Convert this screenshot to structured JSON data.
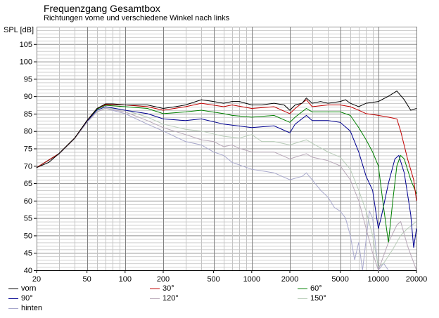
{
  "chart_data": {
    "type": "line",
    "title": "Frequenzgang Gesamtbox",
    "subtitle": "Richtungen vorne und verschiedene Winkel nach links",
    "ylabel": "SPL [dB]",
    "xlabel": "",
    "xscale": "log",
    "xlim": [
      20,
      20000
    ],
    "ylim": [
      40,
      110
    ],
    "xticks": [
      20,
      50,
      100,
      200,
      500,
      1000,
      2000,
      5000,
      10000,
      20000
    ],
    "xtick_labels": [
      "20",
      "50",
      "100",
      "200",
      "500",
      "1000",
      "2000",
      "5000",
      "10000",
      "20000"
    ],
    "yticks": [
      40,
      45,
      50,
      55,
      60,
      65,
      70,
      75,
      80,
      85,
      90,
      95,
      100,
      105
    ],
    "ytick_labels": [
      "40",
      "45",
      "50",
      "55",
      "60",
      "65",
      "70",
      "75",
      "80",
      "85",
      "90",
      "95",
      "100",
      "105"
    ],
    "grid": true,
    "legend_position": "bottom",
    "series": [
      {
        "name": "vorn",
        "color": "#000000",
        "points": [
          [
            20,
            69.5
          ],
          [
            25,
            71
          ],
          [
            30,
            73.5
          ],
          [
            40,
            78
          ],
          [
            50,
            83
          ],
          [
            60,
            86.5
          ],
          [
            70,
            87.8
          ],
          [
            80,
            87.8
          ],
          [
            100,
            87.5
          ],
          [
            150,
            87.5
          ],
          [
            200,
            86.5
          ],
          [
            250,
            87
          ],
          [
            300,
            87.5
          ],
          [
            400,
            89
          ],
          [
            500,
            88.5
          ],
          [
            600,
            88
          ],
          [
            700,
            88.5
          ],
          [
            800,
            88.5
          ],
          [
            1000,
            87.5
          ],
          [
            1200,
            87.5
          ],
          [
            1500,
            88
          ],
          [
            1800,
            87.5
          ],
          [
            2000,
            86
          ],
          [
            2200,
            87.5
          ],
          [
            2500,
            88
          ],
          [
            2700,
            89.5
          ],
          [
            3000,
            88
          ],
          [
            3500,
            88.5
          ],
          [
            4000,
            88
          ],
          [
            5000,
            88.5
          ],
          [
            5500,
            89
          ],
          [
            6000,
            88
          ],
          [
            7000,
            87
          ],
          [
            8000,
            88
          ],
          [
            10000,
            88.5
          ],
          [
            12000,
            90
          ],
          [
            14000,
            91.5
          ],
          [
            16000,
            89
          ],
          [
            18000,
            86
          ],
          [
            20000,
            86.5
          ]
        ]
      },
      {
        "name": "30°",
        "color": "#c00000",
        "points": [
          [
            20,
            69.5
          ],
          [
            30,
            73.5
          ],
          [
            40,
            78
          ],
          [
            50,
            83
          ],
          [
            60,
            86.5
          ],
          [
            70,
            87.6
          ],
          [
            100,
            87.5
          ],
          [
            150,
            87
          ],
          [
            200,
            86
          ],
          [
            300,
            87
          ],
          [
            400,
            88
          ],
          [
            600,
            87
          ],
          [
            700,
            87.5
          ],
          [
            1000,
            86.5
          ],
          [
            1500,
            87
          ],
          [
            2000,
            85
          ],
          [
            2200,
            86.5
          ],
          [
            2700,
            89
          ],
          [
            3000,
            87
          ],
          [
            4000,
            87.5
          ],
          [
            5000,
            87.5
          ],
          [
            6000,
            87
          ],
          [
            7000,
            86
          ],
          [
            8000,
            85
          ],
          [
            10000,
            84.5
          ],
          [
            12000,
            84
          ],
          [
            14000,
            83.5
          ],
          [
            15000,
            80
          ],
          [
            17000,
            72
          ],
          [
            19000,
            66
          ],
          [
            20000,
            60
          ]
        ]
      },
      {
        "name": "60°",
        "color": "#008000",
        "points": [
          [
            20,
            69.5
          ],
          [
            30,
            73.5
          ],
          [
            40,
            78
          ],
          [
            50,
            83
          ],
          [
            60,
            86.3
          ],
          [
            70,
            87.4
          ],
          [
            100,
            87
          ],
          [
            150,
            86.5
          ],
          [
            200,
            85
          ],
          [
            300,
            85.5
          ],
          [
            400,
            86
          ],
          [
            600,
            85
          ],
          [
            700,
            84.5
          ],
          [
            1000,
            84
          ],
          [
            1500,
            84.5
          ],
          [
            2000,
            82.5
          ],
          [
            2200,
            84
          ],
          [
            2700,
            86.5
          ],
          [
            3000,
            85.5
          ],
          [
            4000,
            85.5
          ],
          [
            5000,
            85.5
          ],
          [
            6000,
            84.5
          ],
          [
            7000,
            81
          ],
          [
            8000,
            77.5
          ],
          [
            9000,
            74
          ],
          [
            10000,
            70
          ],
          [
            11000,
            58
          ],
          [
            12000,
            48
          ],
          [
            13000,
            60
          ],
          [
            14000,
            70
          ],
          [
            15000,
            73
          ],
          [
            16000,
            72
          ],
          [
            18000,
            66
          ],
          [
            20000,
            62
          ]
        ]
      },
      {
        "name": "90°",
        "color": "#000090",
        "points": [
          [
            20,
            69.5
          ],
          [
            30,
            73.5
          ],
          [
            40,
            78
          ],
          [
            50,
            82.8
          ],
          [
            60,
            86
          ],
          [
            70,
            87
          ],
          [
            100,
            86
          ],
          [
            150,
            85
          ],
          [
            200,
            83.5
          ],
          [
            300,
            83
          ],
          [
            400,
            83.5
          ],
          [
            600,
            82
          ],
          [
            1000,
            81
          ],
          [
            1500,
            81.5
          ],
          [
            2000,
            79.5
          ],
          [
            2200,
            82
          ],
          [
            2700,
            84.5
          ],
          [
            3000,
            83
          ],
          [
            4000,
            83
          ],
          [
            5000,
            82.5
          ],
          [
            6000,
            80
          ],
          [
            7000,
            74
          ],
          [
            8000,
            67
          ],
          [
            9000,
            63
          ],
          [
            10000,
            52
          ],
          [
            10500,
            55
          ],
          [
            12000,
            65
          ],
          [
            13500,
            72
          ],
          [
            14500,
            73
          ],
          [
            16000,
            68
          ],
          [
            18000,
            56
          ],
          [
            19000,
            46.5
          ],
          [
            20000,
            52
          ]
        ]
      },
      {
        "name": "120°",
        "color": "#b8a8b8",
        "points": [
          [
            20,
            69.5
          ],
          [
            30,
            73.3
          ],
          [
            40,
            77.8
          ],
          [
            50,
            82.5
          ],
          [
            60,
            85.5
          ],
          [
            70,
            86.5
          ],
          [
            100,
            85.5
          ],
          [
            150,
            83
          ],
          [
            200,
            81
          ],
          [
            300,
            79
          ],
          [
            400,
            77.5
          ],
          [
            500,
            77
          ],
          [
            600,
            75.5
          ],
          [
            700,
            76
          ],
          [
            800,
            75
          ],
          [
            1000,
            74
          ],
          [
            1500,
            74
          ],
          [
            2000,
            72
          ],
          [
            2700,
            73.5
          ],
          [
            3000,
            72.5
          ],
          [
            4000,
            71.5
          ],
          [
            5000,
            70
          ],
          [
            6000,
            66
          ],
          [
            7000,
            60
          ],
          [
            8000,
            52
          ],
          [
            9000,
            45
          ],
          [
            10000,
            40
          ],
          [
            12000,
            48
          ],
          [
            14000,
            53
          ],
          [
            15000,
            54
          ],
          [
            17000,
            47
          ],
          [
            20000,
            40
          ]
        ]
      },
      {
        "name": "150°",
        "color": "#b8ccb8",
        "points": [
          [
            20,
            69.5
          ],
          [
            30,
            73.3
          ],
          [
            40,
            77.8
          ],
          [
            50,
            82.5
          ],
          [
            60,
            85.5
          ],
          [
            70,
            86.7
          ],
          [
            100,
            86
          ],
          [
            150,
            84
          ],
          [
            200,
            82
          ],
          [
            300,
            80.5
          ],
          [
            400,
            80
          ],
          [
            600,
            78.5
          ],
          [
            800,
            78
          ],
          [
            1000,
            79
          ],
          [
            1200,
            77
          ],
          [
            1500,
            77
          ],
          [
            2000,
            76
          ],
          [
            2700,
            77.5
          ],
          [
            3000,
            76.5
          ],
          [
            4000,
            74
          ],
          [
            5000,
            72.5
          ],
          [
            6000,
            69
          ],
          [
            7000,
            63
          ],
          [
            8000,
            57
          ],
          [
            9000,
            50
          ],
          [
            10000,
            41
          ],
          [
            11000,
            42
          ],
          [
            13000,
            46
          ],
          [
            15000,
            50
          ],
          [
            17000,
            52
          ],
          [
            20000,
            54
          ]
        ]
      },
      {
        "name": "hinten",
        "color": "#a8a8cc",
        "points": [
          [
            20,
            69.5
          ],
          [
            30,
            73.3
          ],
          [
            40,
            77.8
          ],
          [
            50,
            82.5
          ],
          [
            60,
            85.5
          ],
          [
            70,
            86.5
          ],
          [
            100,
            85
          ],
          [
            150,
            82
          ],
          [
            200,
            80
          ],
          [
            300,
            77
          ],
          [
            400,
            76
          ],
          [
            500,
            74
          ],
          [
            600,
            73
          ],
          [
            700,
            71
          ],
          [
            1000,
            69
          ],
          [
            1500,
            68
          ],
          [
            2000,
            66
          ],
          [
            2500,
            67
          ],
          [
            2700,
            68
          ],
          [
            3000,
            66
          ],
          [
            3500,
            63
          ],
          [
            4000,
            61
          ],
          [
            4500,
            58
          ],
          [
            5000,
            57
          ],
          [
            5500,
            55
          ],
          [
            6000,
            50
          ],
          [
            6500,
            43
          ],
          [
            7000,
            48
          ],
          [
            7500,
            40
          ],
          [
            8500,
            57
          ],
          [
            9000,
            55
          ],
          [
            10000,
            40
          ],
          [
            11000,
            42
          ],
          [
            12000,
            40
          ]
        ]
      }
    ]
  }
}
